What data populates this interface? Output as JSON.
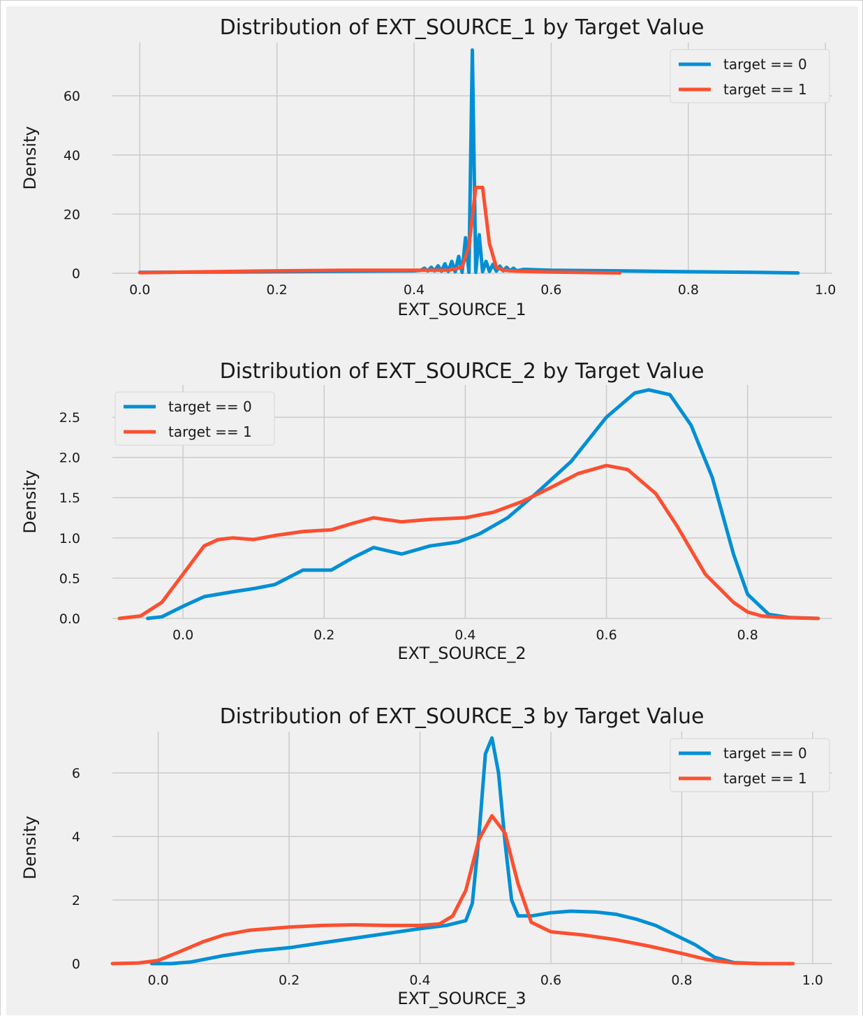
{
  "chart_data": [
    {
      "type": "line",
      "title": "Distribution of EXT_SOURCE_1 by Target Value",
      "xlabel": "EXT_SOURCE_1",
      "ylabel": "Density",
      "xlim": [
        -0.04,
        1.01
      ],
      "ylim": [
        0,
        78
      ],
      "xticks": [
        "0.0",
        "0.2",
        "0.4",
        "0.6",
        "0.8",
        "1.0"
      ],
      "yticks": [
        "0",
        "20",
        "40",
        "60"
      ],
      "legend": "top-right",
      "series": [
        {
          "name": "target == 0",
          "color": "#008fd5",
          "x": [
            0.0,
            0.2,
            0.4,
            0.41,
            0.415,
            0.42,
            0.425,
            0.43,
            0.435,
            0.44,
            0.445,
            0.45,
            0.455,
            0.46,
            0.465,
            0.47,
            0.475,
            0.48,
            0.485,
            0.49,
            0.495,
            0.5,
            0.505,
            0.51,
            0.515,
            0.52,
            0.525,
            0.53,
            0.535,
            0.54,
            0.545,
            0.55,
            0.56,
            0.6,
            0.7,
            0.8,
            0.9,
            0.96
          ],
          "y": [
            0.3,
            0.5,
            0.8,
            1.0,
            1.7,
            0.8,
            2.0,
            0.8,
            2.5,
            0.7,
            3.2,
            0.6,
            4.0,
            0.5,
            5.7,
            0.3,
            12.0,
            0.3,
            75.5,
            0.3,
            13.0,
            0.5,
            4.0,
            0.6,
            3.0,
            0.7,
            2.4,
            0.8,
            2.0,
            0.8,
            1.7,
            0.8,
            1.3,
            1.0,
            0.8,
            0.5,
            0.3,
            0.1
          ]
        },
        {
          "name": "target == 1",
          "color": "#fc4f30",
          "x": [
            0.0,
            0.1,
            0.2,
            0.3,
            0.4,
            0.45,
            0.47,
            0.48,
            0.49,
            0.5,
            0.51,
            0.52,
            0.53,
            0.55,
            0.6,
            0.7
          ],
          "y": [
            0.2,
            0.5,
            0.8,
            1.0,
            1.0,
            1.0,
            2.0,
            9.0,
            29.0,
            29.0,
            10.0,
            2.0,
            1.0,
            0.7,
            0.4,
            0.1
          ]
        }
      ]
    },
    {
      "type": "line",
      "title": "Distribution of EXT_SOURCE_2 by Target Value",
      "xlabel": "EXT_SOURCE_2",
      "ylabel": "Density",
      "xlim": [
        -0.1,
        0.92
      ],
      "ylim": [
        0,
        2.9
      ],
      "xticks": [
        "0.0",
        "0.2",
        "0.4",
        "0.6",
        "0.8"
      ],
      "yticks": [
        "0.0",
        "0.5",
        "1.0",
        "1.5",
        "2.0",
        "2.5"
      ],
      "legend": "top-left",
      "series": [
        {
          "name": "target == 0",
          "color": "#008fd5",
          "x": [
            -0.05,
            -0.03,
            0.0,
            0.03,
            0.07,
            0.1,
            0.13,
            0.17,
            0.21,
            0.24,
            0.27,
            0.31,
            0.35,
            0.39,
            0.42,
            0.46,
            0.5,
            0.55,
            0.6,
            0.64,
            0.66,
            0.69,
            0.72,
            0.75,
            0.78,
            0.8,
            0.83,
            0.86,
            0.9
          ],
          "y": [
            0.0,
            0.02,
            0.15,
            0.27,
            0.33,
            0.37,
            0.42,
            0.6,
            0.6,
            0.75,
            0.88,
            0.8,
            0.9,
            0.95,
            1.05,
            1.25,
            1.55,
            1.95,
            2.5,
            2.8,
            2.84,
            2.78,
            2.4,
            1.75,
            0.8,
            0.3,
            0.05,
            0.01,
            0.0
          ]
        },
        {
          "name": "target == 1",
          "color": "#fc4f30",
          "x": [
            -0.09,
            -0.06,
            -0.03,
            0.0,
            0.03,
            0.05,
            0.07,
            0.1,
            0.13,
            0.17,
            0.21,
            0.24,
            0.27,
            0.31,
            0.35,
            0.4,
            0.44,
            0.48,
            0.52,
            0.56,
            0.6,
            0.63,
            0.67,
            0.7,
            0.74,
            0.78,
            0.8,
            0.82,
            0.85,
            0.9
          ],
          "y": [
            0.0,
            0.03,
            0.2,
            0.55,
            0.9,
            0.98,
            1.0,
            0.98,
            1.03,
            1.08,
            1.1,
            1.18,
            1.25,
            1.2,
            1.23,
            1.25,
            1.32,
            1.45,
            1.62,
            1.8,
            1.9,
            1.85,
            1.55,
            1.15,
            0.55,
            0.2,
            0.08,
            0.03,
            0.01,
            0.0
          ]
        }
      ]
    },
    {
      "type": "line",
      "title": "Distribution of EXT_SOURCE_3 by Target Value",
      "xlabel": "EXT_SOURCE_3",
      "ylabel": "Density",
      "xlim": [
        -0.07,
        1.03
      ],
      "ylim": [
        0,
        7.3
      ],
      "xticks": [
        "0.0",
        "0.2",
        "0.4",
        "0.6",
        "0.8",
        "1.0"
      ],
      "yticks": [
        "0",
        "2",
        "4",
        "6"
      ],
      "legend": "top-right",
      "series": [
        {
          "name": "target == 0",
          "color": "#008fd5",
          "x": [
            -0.01,
            0.02,
            0.05,
            0.1,
            0.15,
            0.2,
            0.25,
            0.3,
            0.35,
            0.4,
            0.44,
            0.47,
            0.48,
            0.49,
            0.5,
            0.51,
            0.52,
            0.53,
            0.54,
            0.55,
            0.57,
            0.6,
            0.63,
            0.67,
            0.7,
            0.73,
            0.76,
            0.8,
            0.82,
            0.85,
            0.88,
            0.92
          ],
          "y": [
            0.0,
            0.0,
            0.05,
            0.25,
            0.4,
            0.5,
            0.65,
            0.8,
            0.95,
            1.1,
            1.2,
            1.35,
            1.9,
            4.0,
            6.6,
            7.1,
            6.0,
            3.8,
            2.0,
            1.5,
            1.5,
            1.6,
            1.65,
            1.62,
            1.55,
            1.4,
            1.2,
            0.8,
            0.6,
            0.2,
            0.03,
            0.0
          ]
        },
        {
          "name": "target == 1",
          "color": "#fc4f30",
          "x": [
            -0.07,
            -0.03,
            0.0,
            0.03,
            0.07,
            0.1,
            0.14,
            0.2,
            0.25,
            0.3,
            0.35,
            0.4,
            0.43,
            0.45,
            0.47,
            0.49,
            0.51,
            0.53,
            0.55,
            0.57,
            0.6,
            0.65,
            0.7,
            0.75,
            0.8,
            0.84,
            0.88,
            0.92,
            0.97
          ],
          "y": [
            0.0,
            0.02,
            0.1,
            0.35,
            0.7,
            0.9,
            1.05,
            1.15,
            1.2,
            1.22,
            1.2,
            1.2,
            1.25,
            1.5,
            2.3,
            3.9,
            4.65,
            4.1,
            2.5,
            1.3,
            1.0,
            0.9,
            0.75,
            0.55,
            0.32,
            0.12,
            0.02,
            0.0,
            0.0
          ]
        }
      ]
    }
  ]
}
